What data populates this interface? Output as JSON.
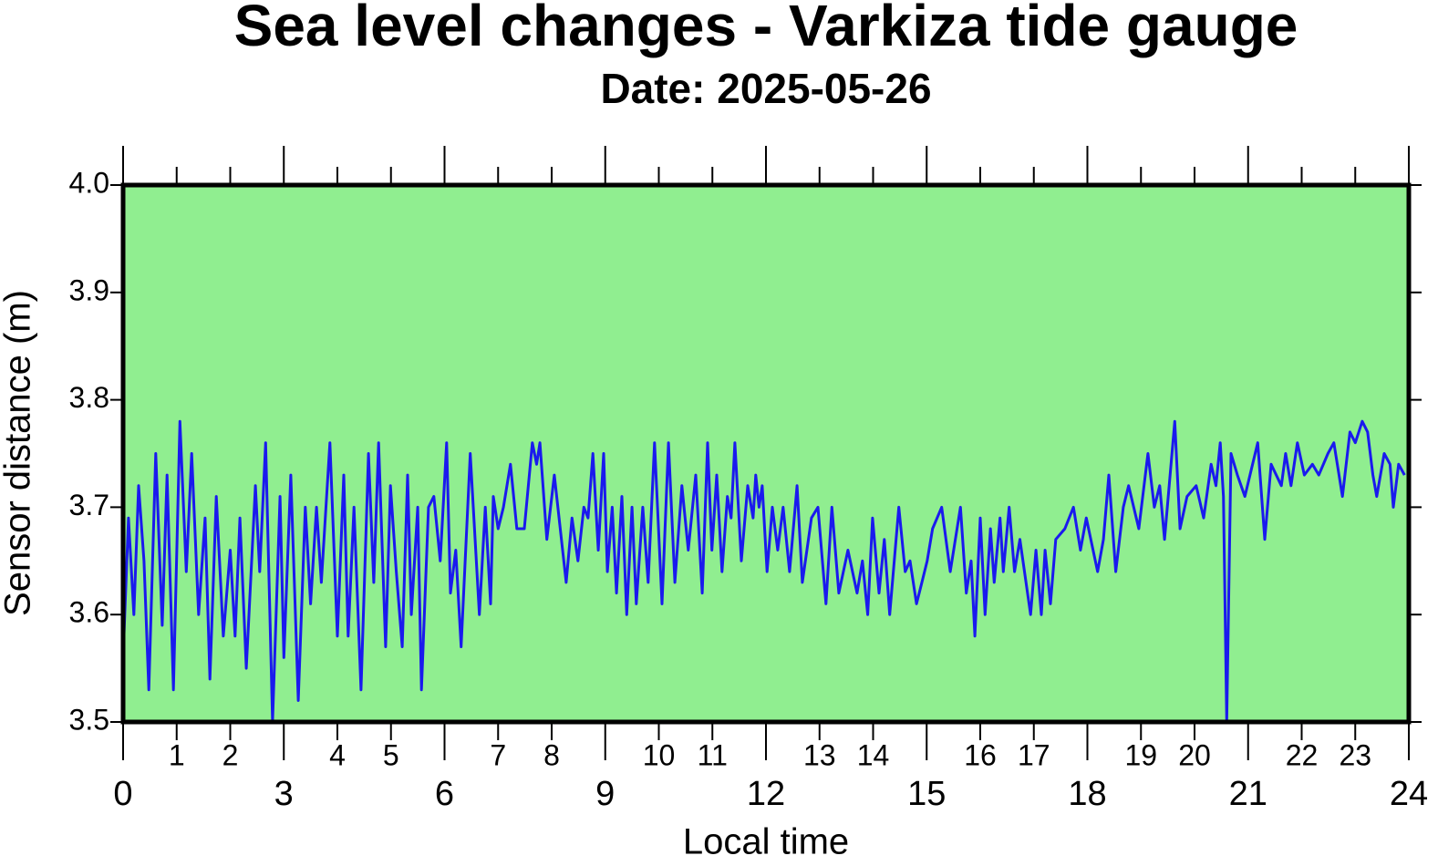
{
  "chart_data": {
    "type": "line",
    "title": "Sea level changes - Varkiza tide gauge",
    "subtitle": "Date: 2025-05-26",
    "xlabel": "Local time",
    "ylabel": "Sensor distance (m)",
    "xlim": [
      0,
      24
    ],
    "xticks": [
      0,
      3,
      6,
      9,
      12,
      15,
      18,
      21,
      24
    ],
    "xticks_minor": [
      1,
      2,
      4,
      5,
      7,
      8,
      10,
      11,
      13,
      14,
      16,
      17,
      19,
      20,
      22,
      23
    ],
    "ylim": [
      3.5,
      4.0
    ],
    "yticks": [
      3.5,
      3.6,
      3.7,
      3.8,
      3.9,
      {
        "value": 4,
        "label": "4.0"
      }
    ],
    "background": "#90ee90",
    "series": [
      {
        "color": "#1a1aee",
        "x": [
          0,
          0.1,
          0.2,
          0.29,
          0.39,
          0.48,
          0.61,
          0.73,
          0.82,
          0.94,
          1.06,
          1.18,
          1.28,
          1.41,
          1.53,
          1.62,
          1.74,
          1.87,
          2.0,
          2.09,
          2.18,
          2.3,
          2.47,
          2.55,
          2.66,
          2.79,
          2.93,
          3.0,
          3.13,
          3.27,
          3.4,
          3.5,
          3.61,
          3.7,
          3.86,
          4.0,
          4.12,
          4.2,
          4.31,
          4.44,
          4.58,
          4.68,
          4.77,
          4.9,
          4.99,
          5.1,
          5.21,
          5.31,
          5.38,
          5.5,
          5.57,
          5.7,
          5.8,
          5.92,
          6.04,
          6.11,
          6.21,
          6.31,
          6.48,
          6.65,
          6.76,
          6.86,
          6.91,
          7.0,
          7.1,
          7.23,
          7.35,
          7.49,
          7.64,
          7.72,
          7.78,
          7.91,
          8.05,
          8.27,
          8.38,
          8.49,
          8.6,
          8.68,
          8.77,
          8.87,
          8.97,
          9.04,
          9.13,
          9.21,
          9.31,
          9.4,
          9.5,
          9.58,
          9.7,
          9.8,
          9.92,
          10.06,
          10.18,
          10.3,
          10.43,
          10.55,
          10.69,
          10.81,
          10.91,
          10.99,
          11.08,
          11.18,
          11.28,
          11.35,
          11.42,
          11.54,
          11.66,
          11.76,
          11.81,
          11.87,
          11.93,
          12.02,
          12.12,
          12.22,
          12.32,
          12.44,
          12.58,
          12.68,
          12.85,
          12.97,
          13.12,
          13.23,
          13.36,
          13.53,
          13.7,
          13.8,
          13.9,
          13.99,
          14.11,
          14.21,
          14.31,
          14.48,
          14.6,
          14.69,
          14.81,
          14.91,
          15.01,
          15.11,
          15.28,
          15.44,
          15.63,
          15.74,
          15.83,
          15.9,
          16.0,
          16.09,
          16.19,
          16.26,
          16.37,
          16.43,
          16.54,
          16.64,
          16.74,
          16.94,
          17.04,
          17.14,
          17.21,
          17.31,
          17.41,
          17.58,
          17.74,
          17.87,
          17.98,
          18.19,
          18.3,
          18.4,
          18.53,
          18.67,
          18.77,
          18.96,
          19.13,
          19.25,
          19.35,
          19.44,
          19.63,
          19.73,
          19.86,
          20.03,
          20.17,
          20.31,
          20.4,
          20.48,
          20.54,
          20.6,
          20.68,
          20.8,
          20.94,
          21.18,
          21.31,
          21.43,
          21.62,
          21.7,
          21.8,
          21.92,
          22.05,
          22.2,
          22.32,
          22.49,
          22.6,
          22.76,
          22.9,
          23.0,
          23.13,
          23.23,
          23.33,
          23.4,
          23.54,
          23.65,
          23.71,
          23.81,
          23.92
        ],
        "values": [
          3.56,
          3.69,
          3.6,
          3.72,
          3.65,
          3.53,
          3.75,
          3.59,
          3.73,
          3.53,
          3.78,
          3.64,
          3.75,
          3.6,
          3.69,
          3.54,
          3.71,
          3.58,
          3.66,
          3.58,
          3.69,
          3.55,
          3.72,
          3.64,
          3.76,
          3.5,
          3.71,
          3.56,
          3.73,
          3.52,
          3.7,
          3.61,
          3.7,
          3.63,
          3.76,
          3.58,
          3.73,
          3.58,
          3.7,
          3.53,
          3.75,
          3.63,
          3.76,
          3.57,
          3.72,
          3.64,
          3.57,
          3.73,
          3.6,
          3.7,
          3.53,
          3.7,
          3.71,
          3.65,
          3.76,
          3.62,
          3.66,
          3.57,
          3.75,
          3.6,
          3.7,
          3.61,
          3.71,
          3.68,
          3.7,
          3.74,
          3.68,
          3.68,
          3.76,
          3.74,
          3.76,
          3.67,
          3.73,
          3.63,
          3.69,
          3.65,
          3.7,
          3.69,
          3.75,
          3.66,
          3.75,
          3.64,
          3.7,
          3.62,
          3.71,
          3.6,
          3.7,
          3.61,
          3.7,
          3.63,
          3.76,
          3.61,
          3.76,
          3.63,
          3.72,
          3.66,
          3.73,
          3.62,
          3.76,
          3.66,
          3.73,
          3.64,
          3.71,
          3.69,
          3.76,
          3.65,
          3.72,
          3.69,
          3.73,
          3.7,
          3.72,
          3.64,
          3.7,
          3.66,
          3.7,
          3.64,
          3.72,
          3.63,
          3.69,
          3.7,
          3.61,
          3.7,
          3.62,
          3.66,
          3.62,
          3.65,
          3.6,
          3.69,
          3.62,
          3.67,
          3.6,
          3.7,
          3.64,
          3.65,
          3.61,
          3.63,
          3.65,
          3.68,
          3.7,
          3.64,
          3.7,
          3.62,
          3.65,
          3.58,
          3.69,
          3.6,
          3.68,
          3.63,
          3.69,
          3.64,
          3.7,
          3.64,
          3.67,
          3.6,
          3.66,
          3.6,
          3.66,
          3.61,
          3.67,
          3.68,
          3.7,
          3.66,
          3.69,
          3.64,
          3.67,
          3.73,
          3.64,
          3.7,
          3.72,
          3.68,
          3.75,
          3.7,
          3.72,
          3.67,
          3.78,
          3.68,
          3.71,
          3.72,
          3.69,
          3.74,
          3.72,
          3.76,
          3.71,
          3.5,
          3.75,
          3.73,
          3.71,
          3.76,
          3.67,
          3.74,
          3.72,
          3.75,
          3.72,
          3.76,
          3.73,
          3.74,
          3.73,
          3.75,
          3.76,
          3.71,
          3.77,
          3.76,
          3.78,
          3.77,
          3.73,
          3.71,
          3.75,
          3.74,
          3.7,
          3.74,
          3.73
        ]
      }
    ]
  }
}
